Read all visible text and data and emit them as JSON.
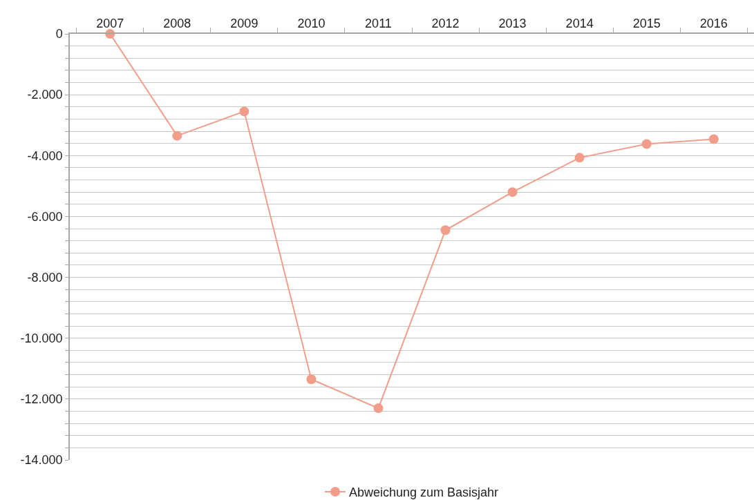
{
  "chart_data": {
    "type": "line",
    "categories": [
      "2007",
      "2008",
      "2009",
      "2010",
      "2011",
      "2012",
      "2013",
      "2014",
      "2015",
      "2016"
    ],
    "series": [
      {
        "name": "Abweichung zum Basisjahr",
        "color": "#f29d89",
        "values": [
          0,
          -3350,
          -2550,
          -11350,
          -12300,
          -6450,
          -5200,
          -4070,
          -3620,
          -3460
        ]
      }
    ],
    "ylim": [
      -14000,
      0
    ],
    "yticks": [
      {
        "value": 0,
        "label": "0"
      },
      {
        "value": -400,
        "label": null
      },
      {
        "value": -800,
        "label": null
      },
      {
        "value": -1200,
        "label": null
      },
      {
        "value": -1600,
        "label": null
      },
      {
        "value": -2000,
        "label": "-2.000"
      },
      {
        "value": -2400,
        "label": null
      },
      {
        "value": -2800,
        "label": null
      },
      {
        "value": -3200,
        "label": null
      },
      {
        "value": -3600,
        "label": null
      },
      {
        "value": -4000,
        "label": "-4.000"
      },
      {
        "value": -4400,
        "label": null
      },
      {
        "value": -4800,
        "label": null
      },
      {
        "value": -5200,
        "label": null
      },
      {
        "value": -5600,
        "label": null
      },
      {
        "value": -6000,
        "label": "-6.000"
      },
      {
        "value": -6400,
        "label": null
      },
      {
        "value": -6800,
        "label": null
      },
      {
        "value": -7200,
        "label": null
      },
      {
        "value": -7600,
        "label": null
      },
      {
        "value": -8000,
        "label": "-8.000"
      },
      {
        "value": -8400,
        "label": null
      },
      {
        "value": -8800,
        "label": null
      },
      {
        "value": -9200,
        "label": null
      },
      {
        "value": -9600,
        "label": null
      },
      {
        "value": -10000,
        "label": "-10.000"
      },
      {
        "value": -10400,
        "label": null
      },
      {
        "value": -10800,
        "label": null
      },
      {
        "value": -11200,
        "label": null
      },
      {
        "value": -11600,
        "label": null
      },
      {
        "value": -12000,
        "label": "-12.000"
      },
      {
        "value": -12400,
        "label": null
      },
      {
        "value": -12800,
        "label": null
      },
      {
        "value": -13200,
        "label": null
      },
      {
        "value": -13600,
        "label": null
      },
      {
        "value": -14000,
        "label": "-14.000"
      }
    ],
    "grid": "y",
    "legend": "bottom",
    "marker": "circle",
    "line_style": "solid"
  }
}
